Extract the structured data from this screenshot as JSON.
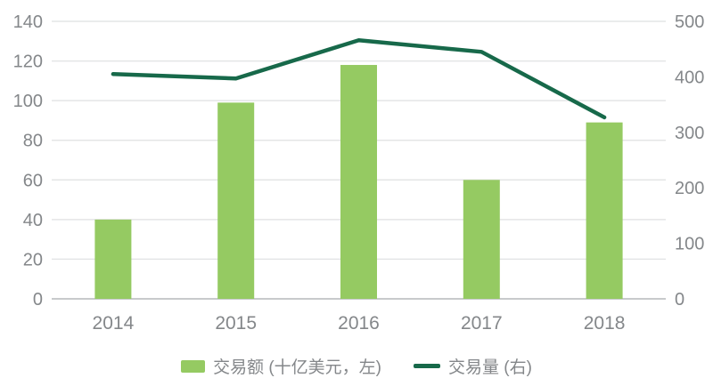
{
  "chart_data": {
    "type": "bar+line combo",
    "categories": [
      "2014",
      "2015",
      "2016",
      "2017",
      "2018"
    ],
    "series": [
      {
        "name": "交易额 (十亿美元，左)",
        "type": "bar",
        "axis": "left",
        "color": "#95ca62",
        "values": [
          40,
          99,
          118,
          60,
          89
        ]
      },
      {
        "name": "交易量 (右)",
        "type": "line",
        "axis": "right",
        "color": "#17694a",
        "values": [
          405,
          397,
          466,
          445,
          327
        ]
      }
    ],
    "left_axis": {
      "min": 0,
      "max": 140,
      "step": 20,
      "ticks": [
        "0",
        "20",
        "40",
        "60",
        "80",
        "100",
        "120",
        "140"
      ]
    },
    "right_axis": {
      "min": 0,
      "max": 500,
      "step": 100,
      "ticks": [
        "0",
        "100",
        "200",
        "300",
        "400",
        "500"
      ]
    },
    "title": "",
    "xlabel": "",
    "ylabel": "",
    "grid": true,
    "legend_position": "bottom"
  },
  "colors": {
    "background": "#ffffff",
    "bar": "#95ca62",
    "line": "#17694a",
    "gridline": "#e4e5e6",
    "baseline": "#c8cacc",
    "axis_text": "#84878a"
  }
}
